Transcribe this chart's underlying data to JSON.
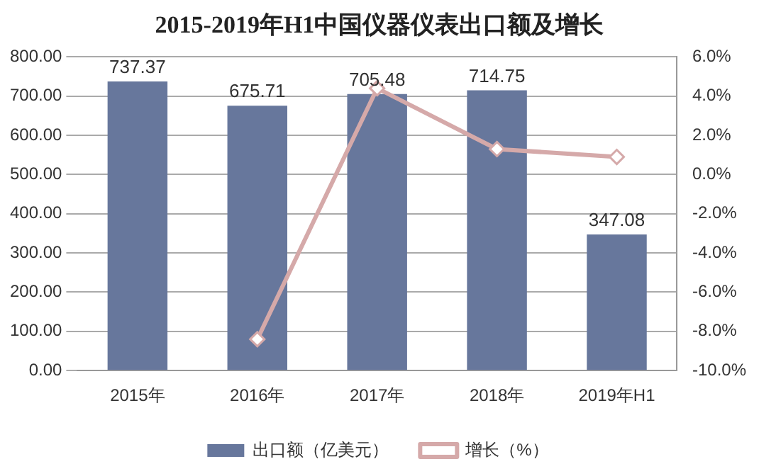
{
  "chart_data": {
    "type": "bar",
    "title": "2015-2019年H1中国仪器仪表出口额及增长",
    "categories": [
      "2015年",
      "2016年",
      "2017年",
      "2018年",
      "2019年H1"
    ],
    "series": [
      {
        "name": "出口额（亿美元）",
        "color": "#67779c",
        "values": [
          737.37,
          675.71,
          705.48,
          714.75,
          347.08
        ],
        "value_labels": [
          "737.37",
          "675.71",
          "705.48",
          "714.75",
          "347.08"
        ]
      },
      {
        "name": "增长（%）",
        "type": "line",
        "axis": "y2",
        "color": "#d5a9a9",
        "marker": "diamond",
        "values": [
          null,
          -8.4,
          4.4,
          1.3,
          0.9
        ]
      }
    ],
    "ylim": [
      0,
      800
    ],
    "yticks": [
      {
        "value": 0,
        "label": "0.00"
      },
      {
        "value": 100,
        "label": "100.00"
      },
      {
        "value": 200,
        "label": "200.00"
      },
      {
        "value": 300,
        "label": "300.00"
      },
      {
        "value": 400,
        "label": "400.00"
      },
      {
        "value": 500,
        "label": "500.00"
      },
      {
        "value": 600,
        "label": "600.00"
      },
      {
        "value": 700,
        "label": "700.00"
      },
      {
        "value": 800,
        "label": "800.00"
      }
    ],
    "y2lim": [
      -10,
      6
    ],
    "y2ticks": [
      {
        "value": -10,
        "label": "-10.0%"
      },
      {
        "value": -8,
        "label": "-8.0%"
      },
      {
        "value": -6,
        "label": "-6.0%"
      },
      {
        "value": -4,
        "label": "-4.0%"
      },
      {
        "value": -2,
        "label": "-2.0%"
      },
      {
        "value": 0,
        "label": "0.0%"
      },
      {
        "value": 2,
        "label": "2.0%"
      },
      {
        "value": 4,
        "label": "4.0%"
      },
      {
        "value": 6,
        "label": "6.0%"
      }
    ],
    "grid": "y",
    "legend": "bottom"
  }
}
